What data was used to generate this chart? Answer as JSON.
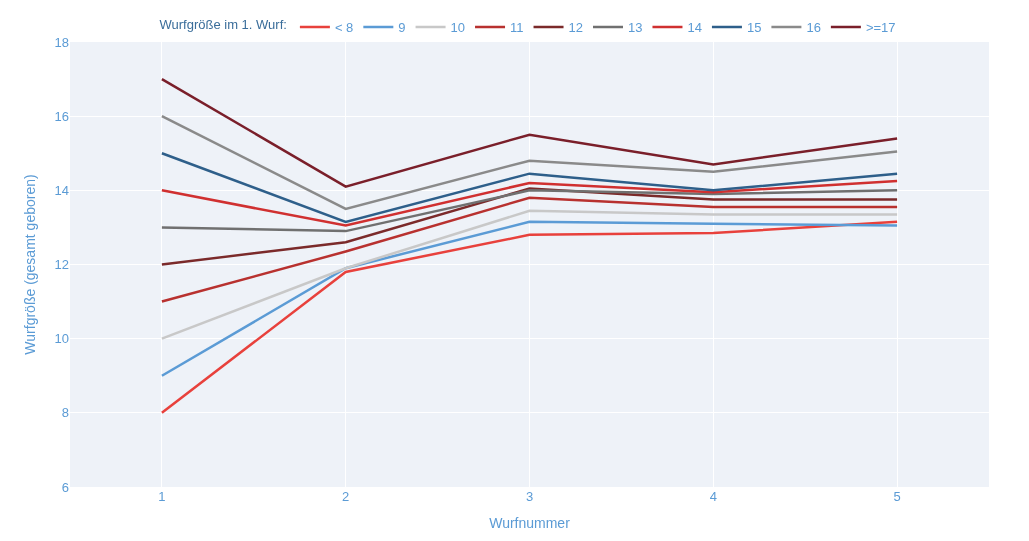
{
  "chart_data": {
    "type": "line",
    "xlabel": "Wurfnummer",
    "ylabel": "Wurfgröße (gesamt geboren)",
    "legend_title": "Wurfgröße im 1. Wurf:",
    "categories": [
      "1",
      "2",
      "3",
      "4",
      "5"
    ],
    "series": [
      {
        "name": "< 8",
        "color": "#e8413c",
        "values": [
          8,
          11.8,
          12.8,
          12.85,
          13.15
        ]
      },
      {
        "name": "9",
        "color": "#5b9bd5",
        "values": [
          9,
          11.9,
          13.15,
          13.1,
          13.05
        ]
      },
      {
        "name": "10",
        "color": "#c8c8c8",
        "values": [
          10,
          11.9,
          13.45,
          13.35,
          13.35
        ]
      },
      {
        "name": "11",
        "color": "#b8312f",
        "values": [
          11,
          12.35,
          13.8,
          13.55,
          13.55
        ]
      },
      {
        "name": "12",
        "color": "#7b2a2a",
        "values": [
          12,
          12.6,
          14.05,
          13.75,
          13.75
        ]
      },
      {
        "name": "13",
        "color": "#707070",
        "values": [
          13,
          12.9,
          14.0,
          13.9,
          14.0
        ]
      },
      {
        "name": "14",
        "color": "#d03030",
        "values": [
          14,
          13.05,
          14.2,
          13.95,
          14.25
        ]
      },
      {
        "name": "15",
        "color": "#2e5f8a",
        "values": [
          15,
          13.15,
          14.45,
          14.0,
          14.45
        ]
      },
      {
        "name": "16",
        "color": "#8a8a8a",
        "values": [
          16,
          13.5,
          14.8,
          14.5,
          15.05
        ]
      },
      {
        "name": ">=17",
        "color": "#7a1f2a",
        "values": [
          17,
          14.1,
          15.5,
          14.7,
          15.4
        ]
      }
    ],
    "ylim": [
      6,
      18
    ],
    "yticks": [
      6,
      8,
      10,
      12,
      14,
      16,
      18
    ],
    "grid": true,
    "legend": "top",
    "marker": "none",
    "line_style": "solid"
  }
}
